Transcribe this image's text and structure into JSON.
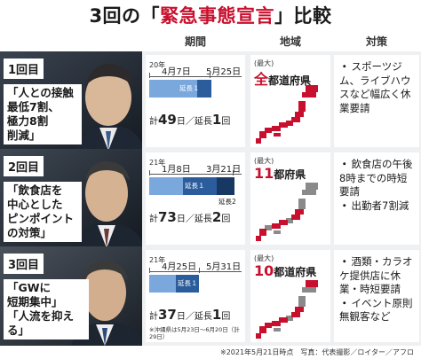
{
  "title": {
    "pre": "3回の「",
    "emph": "緊急事態宣言",
    "post": "」比較"
  },
  "headers": {
    "period": "期間",
    "area": "地域",
    "measures": "対策"
  },
  "rows": [
    {
      "round": "1回目",
      "policy": [
        "「人との接触",
        "最低7割、",
        "極力8割",
        "削減」"
      ],
      "year": "20年",
      "start": "4月7日",
      "end": "5月25日",
      "ext1": "延長１",
      "ext2": "",
      "total_pre": "計",
      "total_days": "49",
      "total_mid": "日／延長",
      "total_ext": "1",
      "total_post": "回",
      "note": "",
      "max_label": "(最大)",
      "scope_num": "全",
      "scope_rest": "都道府県",
      "measures": [
        "スポーツジム、ライブハウスなど幅広く休業要請"
      ],
      "duration_days": 49
    },
    {
      "round": "2回目",
      "policy": [
        "「飲食店を",
        "中心とした",
        "ピンポイント",
        "の対策」"
      ],
      "year": "21年",
      "start": "1月8日",
      "end": "3月21日",
      "ext1": "延長１",
      "ext2": "延長2",
      "total_pre": "計",
      "total_days": "73",
      "total_mid": "日／延長",
      "total_ext": "2",
      "total_post": "回",
      "note": "",
      "max_label": "(最大)",
      "scope_num": "11",
      "scope_rest": "都府県",
      "measures": [
        "飲食店の午後8時までの時短要請",
        "出勤者7割減"
      ],
      "duration_days": 73
    },
    {
      "round": "3回目",
      "policy": [
        "「GWに",
        "短期集中」",
        "「人流を抑える」"
      ],
      "year": "21年",
      "start": "4月25日",
      "end": "5月31日",
      "ext1": "延長１",
      "ext2": "",
      "total_pre": "計",
      "total_days": "37",
      "total_mid": "日／延長",
      "total_ext": "1",
      "total_post": "回",
      "note": "※沖縄県は5月23日～6月20日（計29日）",
      "max_label": "(最大)",
      "scope_num": "10",
      "scope_rest": "都道府県",
      "measures": [
        "酒類・カラオケ提供店に休業・時短要請",
        "イベント原則無観客など"
      ],
      "duration_days": 37
    }
  ],
  "footer": "※2021年5月21日時点　写真：代表撮影／ロイター／アフロ",
  "colors": {
    "accent": "#c8102e",
    "bar_main": "#7aa8dc",
    "bar_ext1": "#2b5c9c",
    "bar_ext2": "#163862",
    "map_gray": "#8a8a8a"
  }
}
